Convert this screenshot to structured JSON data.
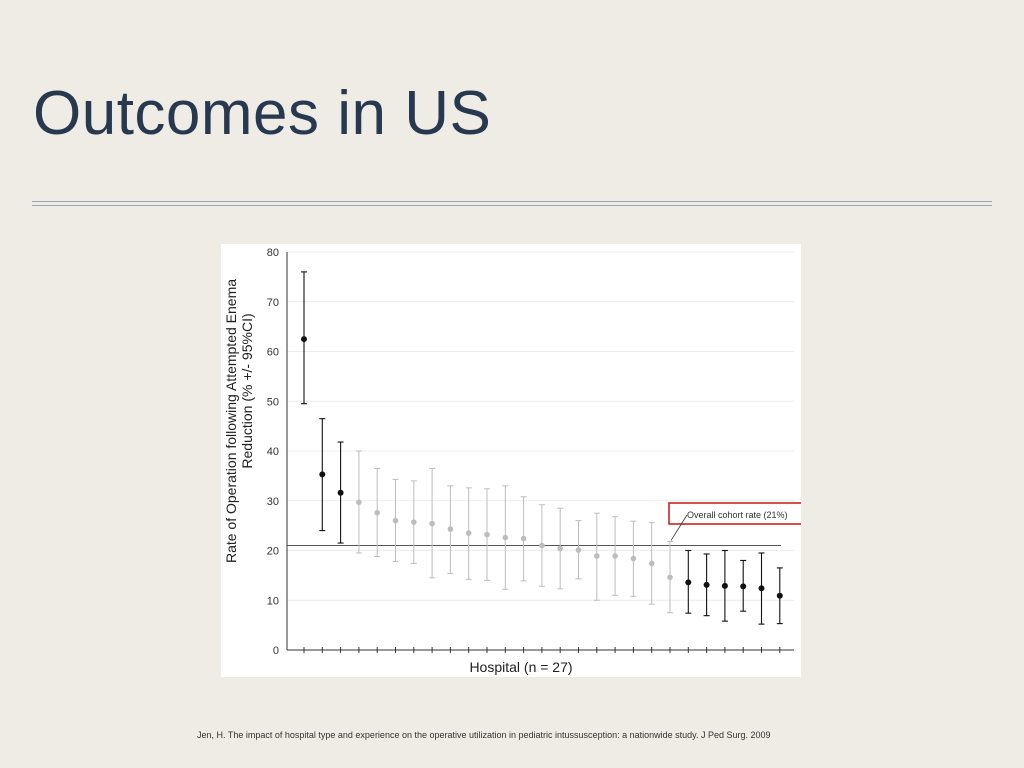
{
  "slide": {
    "title": "Outcomes in US",
    "citation": "Jen, H. The impact of hospital type and experience on the operative utilization in pediatric intussusception: a nationwide study. J Ped Surg. 2009"
  },
  "chart_data": {
    "type": "scatter",
    "title": "",
    "xlabel": "Hospital (n = 27)",
    "ylabel_lines": [
      "Rate of Operation following Attempted Enema",
      "Reduction (% +/- 95%CI)"
    ],
    "ylim": [
      0,
      80
    ],
    "yticks": [
      "0",
      "10",
      "20",
      "30",
      "40",
      "50",
      "60",
      "70",
      "80"
    ],
    "grid": true,
    "reference_line": {
      "value": 21,
      "label": "Overall cohort rate (21%)"
    },
    "colors": {
      "high": "#111111",
      "average": "#bdbdbd",
      "low": "#111111",
      "box": "#cc2222"
    },
    "points": [
      {
        "hospital": 1,
        "rate": 62.5,
        "low": 49.5,
        "high": 76.0,
        "group": "high"
      },
      {
        "hospital": 2,
        "rate": 35.3,
        "low": 24.0,
        "high": 46.5,
        "group": "high"
      },
      {
        "hospital": 3,
        "rate": 31.6,
        "low": 21.5,
        "high": 41.8,
        "group": "high"
      },
      {
        "hospital": 4,
        "rate": 29.7,
        "low": 19.5,
        "high": 40.0,
        "group": "average"
      },
      {
        "hospital": 5,
        "rate": 27.6,
        "low": 18.8,
        "high": 36.5,
        "group": "average"
      },
      {
        "hospital": 6,
        "rate": 26.0,
        "low": 17.8,
        "high": 34.3,
        "group": "average"
      },
      {
        "hospital": 7,
        "rate": 25.7,
        "low": 17.4,
        "high": 34.0,
        "group": "average"
      },
      {
        "hospital": 8,
        "rate": 25.4,
        "low": 14.5,
        "high": 36.5,
        "group": "average"
      },
      {
        "hospital": 9,
        "rate": 24.3,
        "low": 15.4,
        "high": 33.0,
        "group": "average"
      },
      {
        "hospital": 10,
        "rate": 23.5,
        "low": 14.2,
        "high": 32.6,
        "group": "average"
      },
      {
        "hospital": 11,
        "rate": 23.2,
        "low": 14.0,
        "high": 32.4,
        "group": "average"
      },
      {
        "hospital": 12,
        "rate": 22.6,
        "low": 12.2,
        "high": 33.0,
        "group": "average"
      },
      {
        "hospital": 13,
        "rate": 22.4,
        "low": 13.9,
        "high": 30.8,
        "group": "average"
      },
      {
        "hospital": 14,
        "rate": 21.0,
        "low": 12.8,
        "high": 29.2,
        "group": "average"
      },
      {
        "hospital": 15,
        "rate": 20.4,
        "low": 12.3,
        "high": 28.5,
        "group": "average"
      },
      {
        "hospital": 16,
        "rate": 20.1,
        "low": 14.3,
        "high": 26.0,
        "group": "average"
      },
      {
        "hospital": 17,
        "rate": 18.9,
        "low": 10.0,
        "high": 27.5,
        "group": "average"
      },
      {
        "hospital": 18,
        "rate": 18.9,
        "low": 11.0,
        "high": 26.8,
        "group": "average"
      },
      {
        "hospital": 19,
        "rate": 18.4,
        "low": 10.8,
        "high": 25.9,
        "group": "average"
      },
      {
        "hospital": 20,
        "rate": 17.4,
        "low": 9.2,
        "high": 25.6,
        "group": "average"
      },
      {
        "hospital": 21,
        "rate": 14.6,
        "low": 7.5,
        "high": 21.8,
        "group": "average"
      },
      {
        "hospital": 22,
        "rate": 13.6,
        "low": 7.4,
        "high": 20.0,
        "group": "low"
      },
      {
        "hospital": 23,
        "rate": 13.1,
        "low": 6.9,
        "high": 19.3,
        "group": "low"
      },
      {
        "hospital": 24,
        "rate": 12.9,
        "low": 5.8,
        "high": 20.0,
        "group": "low"
      },
      {
        "hospital": 25,
        "rate": 12.8,
        "low": 7.8,
        "high": 18.0,
        "group": "low"
      },
      {
        "hospital": 26,
        "rate": 12.4,
        "low": 5.2,
        "high": 19.5,
        "group": "low"
      },
      {
        "hospital": 27,
        "rate": 10.9,
        "low": 5.3,
        "high": 16.5,
        "group": "low"
      }
    ]
  }
}
